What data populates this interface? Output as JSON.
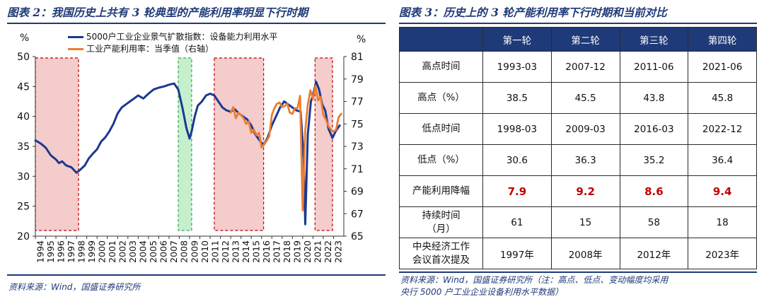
{
  "left": {
    "title": "图表 2：我国历史上共有 3 轮典型的产能利用率明显下行时期",
    "source": "资料来源：Wind，国盛证券研究所"
  },
  "right": {
    "title": "图表 3：历史上的 3 轮产能利用率下行时期和当前对比",
    "source_line1": "资料来源：Wind，国盛证券研究所（注：高点、低点、变动幅度均采用",
    "source_line2": "央行 5000 户工业企业设备利用水平数据）"
  },
  "colors": {
    "series_blue": "#1a3a8f",
    "series_orange": "#ed7d31",
    "shade_red_fill": "#f4cccc",
    "shade_red_border": "#c00000",
    "shade_green_fill": "#c6efce",
    "shade_green_border": "#2fa84f",
    "title_navy": "#1f3a78",
    "highlight_red": "#c00000"
  },
  "chart_data": {
    "type": "line",
    "left_axis_unit": "%",
    "right_axis_unit": "%",
    "ylim_left": [
      20,
      50
    ],
    "ylim_right": [
      65,
      81
    ],
    "yticks_left": [
      20,
      25,
      30,
      35,
      40,
      45,
      50
    ],
    "yticks_right": [
      65,
      67,
      69,
      71,
      73,
      75,
      77,
      79,
      81
    ],
    "xlim": [
      1994,
      2024
    ],
    "xticks": [
      "1994",
      "1995",
      "1996",
      "1997",
      "1998",
      "1999",
      "2000",
      "2001",
      "2002",
      "2003",
      "2004",
      "2005",
      "2006",
      "2007",
      "2008",
      "2009",
      "2010",
      "2011",
      "2012",
      "2013",
      "2014",
      "2015",
      "2016",
      "2017",
      "2018",
      "2019",
      "2020",
      "2021",
      "2022",
      "2023"
    ],
    "shaded_periods": [
      {
        "start": 1994.0,
        "end": 1998.2,
        "color": "red"
      },
      {
        "start": 2007.9,
        "end": 2009.2,
        "color": "green"
      },
      {
        "start": 2011.4,
        "end": 2016.2,
        "color": "red"
      },
      {
        "start": 2021.2,
        "end": 2022.9,
        "color": "red"
      }
    ],
    "series": [
      {
        "name": "5000户工业企业景气扩散指数：设备能力利用水平",
        "axis": "left",
        "color": "#1a3a8f",
        "x": [
          1994.0,
          1994.5,
          1995.0,
          1995.5,
          1996.0,
          1996.3,
          1996.6,
          1997.0,
          1997.5,
          1998.0,
          1998.3,
          1998.8,
          1999.2,
          1999.6,
          2000.0,
          2000.4,
          2000.8,
          2001.2,
          2001.6,
          2002.0,
          2002.4,
          2002.8,
          2003.2,
          2003.6,
          2004.0,
          2004.5,
          2005.0,
          2005.5,
          2006.0,
          2006.5,
          2007.0,
          2007.5,
          2007.9,
          2008.3,
          2008.7,
          2009.0,
          2009.2,
          2009.5,
          2009.8,
          2010.2,
          2010.6,
          2011.0,
          2011.4,
          2011.8,
          2012.2,
          2012.6,
          2013.0,
          2013.4,
          2013.8,
          2014.2,
          2014.6,
          2015.0,
          2015.4,
          2015.8,
          2016.2,
          2016.6,
          2017.0,
          2017.4,
          2017.8,
          2018.2,
          2018.6,
          2019.0,
          2019.4,
          2019.8,
          2020.1,
          2020.25,
          2020.5,
          2020.8,
          2021.0,
          2021.3,
          2021.6,
          2021.9,
          2022.2,
          2022.5,
          2022.9,
          2023.2,
          2023.6
        ],
        "values": [
          36.0,
          35.5,
          34.8,
          33.5,
          32.8,
          32.2,
          32.5,
          31.8,
          31.5,
          30.6,
          31.0,
          31.8,
          33.0,
          33.8,
          34.5,
          35.8,
          36.5,
          37.5,
          38.8,
          40.5,
          41.5,
          42.0,
          42.5,
          43.0,
          43.5,
          43.0,
          43.8,
          44.5,
          44.8,
          45.0,
          45.3,
          45.5,
          44.5,
          41.5,
          38.0,
          36.3,
          37.5,
          40.0,
          41.8,
          42.5,
          43.5,
          43.8,
          43.5,
          42.5,
          41.5,
          41.0,
          40.8,
          41.2,
          40.5,
          40.0,
          39.5,
          38.5,
          37.0,
          36.0,
          35.2,
          36.5,
          38.5,
          40.0,
          41.5,
          42.5,
          42.0,
          41.5,
          41.0,
          40.8,
          33.0,
          22.0,
          37.0,
          42.5,
          43.5,
          45.8,
          44.5,
          42.0,
          41.0,
          38.0,
          36.4,
          37.5,
          38.5
        ]
      },
      {
        "name": "工业产能利用率：当季值（右轴）",
        "axis": "right",
        "color": "#ed7d31",
        "x": [
          2013.0,
          2013.25,
          2013.5,
          2013.75,
          2014.0,
          2014.25,
          2014.5,
          2014.75,
          2015.0,
          2015.25,
          2015.5,
          2015.75,
          2016.0,
          2016.25,
          2016.5,
          2016.75,
          2017.0,
          2017.25,
          2017.5,
          2017.75,
          2018.0,
          2018.25,
          2018.5,
          2018.75,
          2019.0,
          2019.25,
          2019.5,
          2019.75,
          2020.0,
          2020.25,
          2020.5,
          2020.75,
          2021.0,
          2021.25,
          2021.5,
          2021.75,
          2022.0,
          2022.25,
          2022.5,
          2022.75,
          2023.0,
          2023.25,
          2023.5,
          2023.75
        ],
        "values": [
          76.0,
          76.5,
          75.5,
          76.0,
          75.8,
          75.5,
          75.0,
          75.2,
          74.2,
          74.5,
          74.0,
          74.2,
          72.9,
          73.2,
          73.5,
          73.9,
          75.8,
          76.4,
          76.8,
          76.9,
          76.5,
          76.6,
          76.8,
          76.0,
          75.9,
          76.4,
          76.4,
          77.5,
          67.3,
          74.4,
          76.7,
          78.0,
          77.2,
          78.4,
          77.1,
          77.4,
          75.8,
          75.4,
          74.8,
          74.5,
          74.3,
          74.5,
          75.6,
          75.9
        ]
      }
    ]
  },
  "table": {
    "corner": "",
    "columns": [
      "第一轮",
      "第二轮",
      "第三轮",
      "第四轮"
    ],
    "rows": [
      {
        "label": "高点时间",
        "values": [
          "1993-03",
          "2007-12",
          "2011-06",
          "2021-06"
        ]
      },
      {
        "label": "高点（%）",
        "values": [
          "38.5",
          "45.5",
          "43.8",
          "45.8"
        ]
      },
      {
        "label": "低点时间",
        "values": [
          "1998-03",
          "2009-03",
          "2016-03",
          "2022-12"
        ]
      },
      {
        "label": "低点（%）",
        "values": [
          "30.6",
          "36.3",
          "35.2",
          "36.4"
        ]
      },
      {
        "label": "产能利用降幅",
        "values": [
          "7.9",
          "9.2",
          "8.6",
          "9.4"
        ],
        "highlight": true
      },
      {
        "label": "持续时间|（月）",
        "values": [
          "61",
          "15",
          "58",
          "18"
        ]
      },
      {
        "label": "中央经济工作|会议首次提及",
        "values": [
          "1997年",
          "2008年",
          "2012年",
          "2023年"
        ]
      }
    ]
  }
}
